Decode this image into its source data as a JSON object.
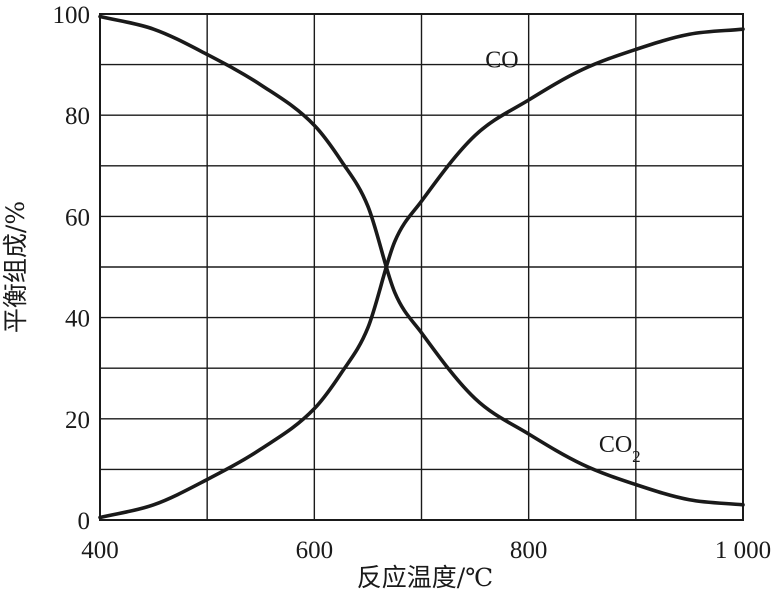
{
  "chart_data": {
    "type": "line",
    "xlabel": "反应温度/℃",
    "ylabel": "平衡组成/%",
    "xlim": [
      400,
      1000
    ],
    "ylim": [
      0,
      100
    ],
    "x_ticks": [
      400,
      600,
      800,
      1000
    ],
    "x_tick_labels": [
      "400",
      "600",
      "800",
      "1 000"
    ],
    "y_ticks": [
      0,
      20,
      40,
      60,
      80,
      100
    ],
    "y_tick_labels": [
      "0",
      "20",
      "40",
      "60",
      "80",
      "100"
    ],
    "x_grid": [
      400,
      500,
      600,
      700,
      800,
      900,
      1000
    ],
    "y_grid": [
      0,
      10,
      20,
      30,
      40,
      50,
      60,
      70,
      80,
      90,
      100
    ],
    "grid": true,
    "series": [
      {
        "name": "CO",
        "x": [
          400,
          450,
          500,
          550,
          600,
          625,
          650,
          675,
          700,
          750,
          800,
          850,
          900,
          950,
          1000
        ],
        "y": [
          0.5,
          3,
          8,
          14,
          22,
          29,
          38,
          55,
          63,
          76,
          83,
          89,
          93,
          96,
          97
        ]
      },
      {
        "name": "CO2",
        "x": [
          400,
          450,
          500,
          550,
          600,
          625,
          650,
          675,
          700,
          750,
          800,
          850,
          900,
          950,
          1000
        ],
        "y": [
          99.5,
          97,
          92,
          86,
          78,
          71,
          62,
          45,
          37,
          24,
          17,
          11,
          7,
          4,
          3
        ]
      }
    ],
    "annotations": [
      {
        "text": "CO",
        "x": 775,
        "y": 91
      },
      {
        "text": "CO",
        "sub": "2",
        "x": 885,
        "y": 15
      }
    ]
  }
}
